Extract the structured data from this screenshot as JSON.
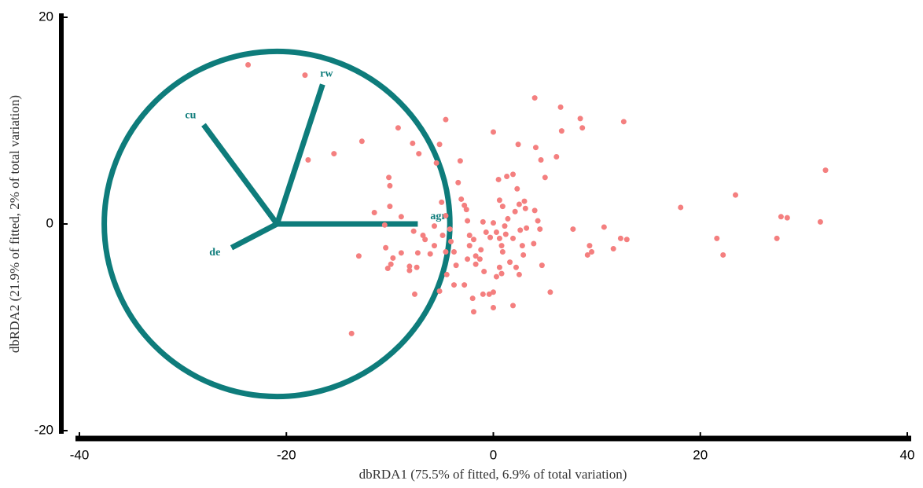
{
  "chart_data": {
    "type": "scatter",
    "x_label": "dbRDA1 (75.5% of fitted, 6.9% of total variation)",
    "y_label": "dbRDA2 (21.9% of fitted, 2% of total variation)",
    "xlim": [
      -40,
      40
    ],
    "ylim": [
      -20,
      20
    ],
    "xticks": [
      -40,
      -20,
      0,
      20,
      40
    ],
    "yticks": [
      -20,
      0,
      20
    ],
    "color": "#f47f7f",
    "x": [
      -23.7,
      -18.2,
      -17.9,
      -15.4,
      -12.7,
      -11.5,
      -13.0,
      -13.7,
      -10.1,
      -10.0,
      -10.0,
      -8.9,
      -9.2,
      -10.5,
      -10.4,
      -9.7,
      -10.2,
      -9.9,
      -8.9,
      -8.1,
      -8.1,
      -7.4,
      -7.6,
      -7.3,
      -7.7,
      -7.8,
      -7.2,
      -6.8,
      -6.6,
      -6.1,
      -5.7,
      -5.7,
      -5.2,
      -4.6,
      -5.5,
      -5.0,
      -4.6,
      -4.9,
      -4.6,
      -4.5,
      -5.2,
      -4.2,
      -4.1,
      -3.8,
      -3.8,
      -3.6,
      -3.2,
      -3.4,
      -3.1,
      -2.8,
      -2.6,
      -2.5,
      -2.3,
      -2.3,
      -2.5,
      -2.8,
      -1.9,
      -1.7,
      -1.3,
      -1.2,
      -0.9,
      -1.7,
      -2.0,
      -1.9,
      -1.0,
      -0.4,
      0.0,
      0.0,
      -1.0,
      -0.7,
      -0.3,
      0.0,
      0.3,
      0.6,
      0.8,
      0.0,
      0.5,
      0.6,
      0.9,
      1.3,
      1.4,
      1.1,
      1.2,
      0.9,
      0.6,
      0.8,
      0.3,
      1.6,
      1.9,
      2.1,
      2.4,
      1.9,
      2.3,
      2.5,
      2.6,
      2.8,
      2.9,
      3.1,
      3.2,
      3.0,
      2.2,
      1.9,
      2.5,
      4.1,
      4.0,
      4.6,
      5.0,
      4.0,
      4.3,
      4.5,
      3.9,
      4.7,
      5.5,
      6.1,
      6.5,
      6.6,
      8.4,
      8.6,
      7.7,
      12.6,
      9.3,
      9.5,
      9.1,
      10.7,
      11.6,
      12.3,
      12.9,
      18.1,
      21.6,
      22.2,
      23.4,
      27.4,
      27.8,
      28.4,
      31.6,
      32.1
    ],
    "y": [
      15.4,
      14.4,
      6.2,
      6.8,
      8.0,
      1.1,
      -3.1,
      -10.6,
      4.5,
      3.7,
      1.7,
      0.7,
      9.3,
      -0.1,
      -2.3,
      -3.3,
      -4.3,
      -3.9,
      -2.8,
      -4.1,
      -4.5,
      -4.2,
      -6.8,
      -2.8,
      -0.7,
      7.8,
      6.8,
      -1.1,
      -1.5,
      -2.9,
      -2.1,
      -0.2,
      7.7,
      10.1,
      5.9,
      2.1,
      0.8,
      -1.1,
      -2.7,
      -4.9,
      -6.5,
      -0.5,
      -1.7,
      -2.7,
      -5.9,
      -4.0,
      6.1,
      4.0,
      2.4,
      1.8,
      1.4,
      0.3,
      -1.1,
      -2.1,
      -3.4,
      -5.9,
      -1.5,
      -3.1,
      -3.4,
      -2.5,
      -4.6,
      -3.9,
      -7.2,
      -8.5,
      -6.8,
      -6.8,
      -6.6,
      -8.1,
      0.2,
      -0.8,
      -1.3,
      0.1,
      -0.8,
      -1.4,
      -2.1,
      8.9,
      4.3,
      2.3,
      1.7,
      4.6,
      0.5,
      -0.2,
      -1.0,
      -2.7,
      -4.2,
      -4.8,
      -5.1,
      -3.7,
      -1.4,
      1.2,
      7.7,
      4.8,
      3.4,
      1.9,
      -0.6,
      -2.1,
      -3.0,
      1.5,
      -0.4,
      2.2,
      -4.2,
      -7.9,
      -4.9,
      7.4,
      12.2,
      6.2,
      4.5,
      1.3,
      0.3,
      -0.5,
      -1.9,
      -4.0,
      -6.6,
      6.5,
      11.3,
      9.0,
      10.2,
      9.3,
      -0.5,
      9.9,
      -2.1,
      -2.7,
      -3.0,
      -0.3,
      -2.4,
      -1.4,
      -1.5,
      1.6,
      -1.4,
      -3.0,
      2.8,
      -1.4,
      0.7,
      0.6,
      0.2,
      5.2
    ],
    "vector_color": "#0e7c7b",
    "vectors": {
      "origin": [
        -20.9,
        0
      ],
      "labels": [
        "agri",
        "rw",
        "cu",
        "de"
      ],
      "x": [
        -7.3,
        -16.5,
        -28.0,
        -25.3
      ],
      "y": [
        0,
        13.5,
        9.6,
        -2.3
      ]
    },
    "circle": {
      "x": -20.9,
      "y": 0,
      "r": 16.7
    }
  }
}
